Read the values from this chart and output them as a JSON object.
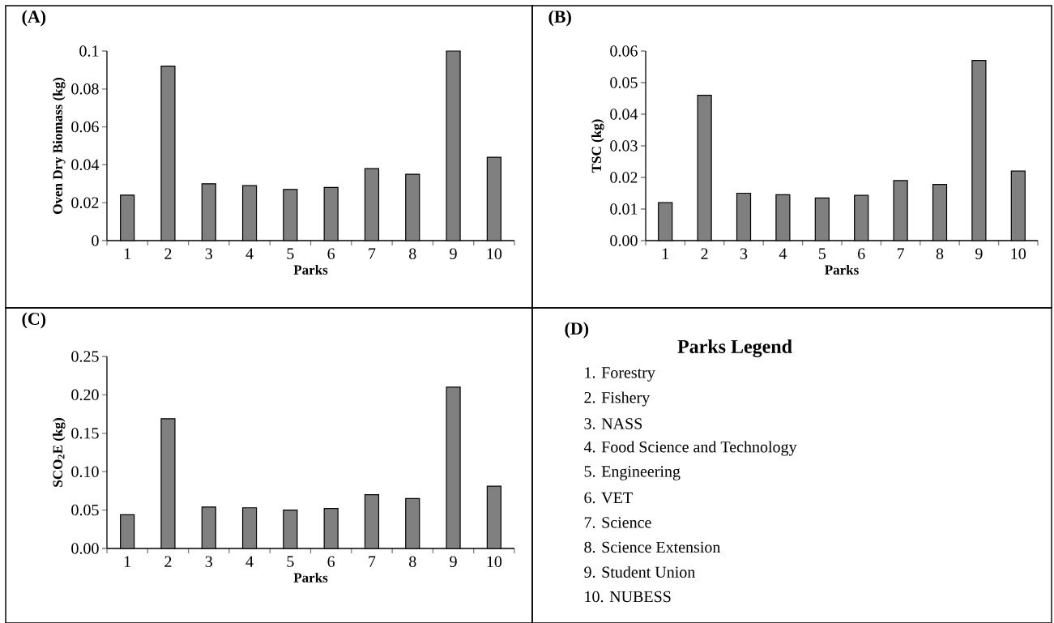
{
  "chart_data": [
    {
      "type": "bar",
      "title": "(A)",
      "xlabel": "Parks",
      "ylabel": "Oven Dry Biomass (kg)",
      "categories": [
        "1",
        "2",
        "3",
        "4",
        "5",
        "6",
        "7",
        "8",
        "9",
        "10"
      ],
      "values": [
        0.024,
        0.092,
        0.03,
        0.029,
        0.027,
        0.028,
        0.038,
        0.035,
        0.1,
        0.044
      ],
      "color": "#808080",
      "ylim": [
        0,
        0.1
      ],
      "yticks": [
        0,
        0.02,
        0.04,
        0.06,
        0.08,
        0.1
      ]
    },
    {
      "type": "bar",
      "title": "(B)",
      "xlabel": "Parks",
      "ylabel": "TSC (kg)",
      "categories": [
        "1",
        "2",
        "3",
        "4",
        "5",
        "6",
        "7",
        "8",
        "9",
        "10"
      ],
      "values": [
        0.012,
        0.046,
        0.015,
        0.0145,
        0.0135,
        0.0143,
        0.019,
        0.0178,
        0.057,
        0.022
      ],
      "color": "#808080",
      "ylim": [
        0,
        0.06
      ],
      "yticks": [
        {
          "value": 0,
          "label": "0.00"
        },
        0.01,
        0.02,
        0.03,
        0.04,
        0.05,
        0.06
      ]
    },
    {
      "type": "bar",
      "title": "(C)",
      "xlabel": "Parks",
      "ylabel": "SCO$_{2}$E  (kg)",
      "categories": [
        "1",
        "2",
        "3",
        "4",
        "5",
        "6",
        "7",
        "8",
        "9",
        "10"
      ],
      "values": [
        0.044,
        0.169,
        0.054,
        0.053,
        0.05,
        0.052,
        0.07,
        0.065,
        0.21,
        0.081
      ],
      "color": "#808080",
      "ylim": [
        0,
        0.25
      ],
      "yticks": [
        {
          "value": 0,
          "label": "0.00"
        },
        0.05,
        {
          "value": 0.1,
          "label": "0.10"
        },
        0.15,
        {
          "value": 0.2,
          "label": "0.20"
        },
        0.25
      ]
    },
    {
      "type": "other",
      "title": "(D)",
      "subtitle": "Parks Legend",
      "annotations": [
        "1.  Forestry",
        "2.  Fishery",
        "3.  NASS",
        "4.  Food Science and Technology",
        "5.  Engineering",
        "6.  VET",
        "7.  Science",
        "8.  Science Extension",
        "9.  Student Union",
        "10. NUBESS"
      ]
    }
  ]
}
